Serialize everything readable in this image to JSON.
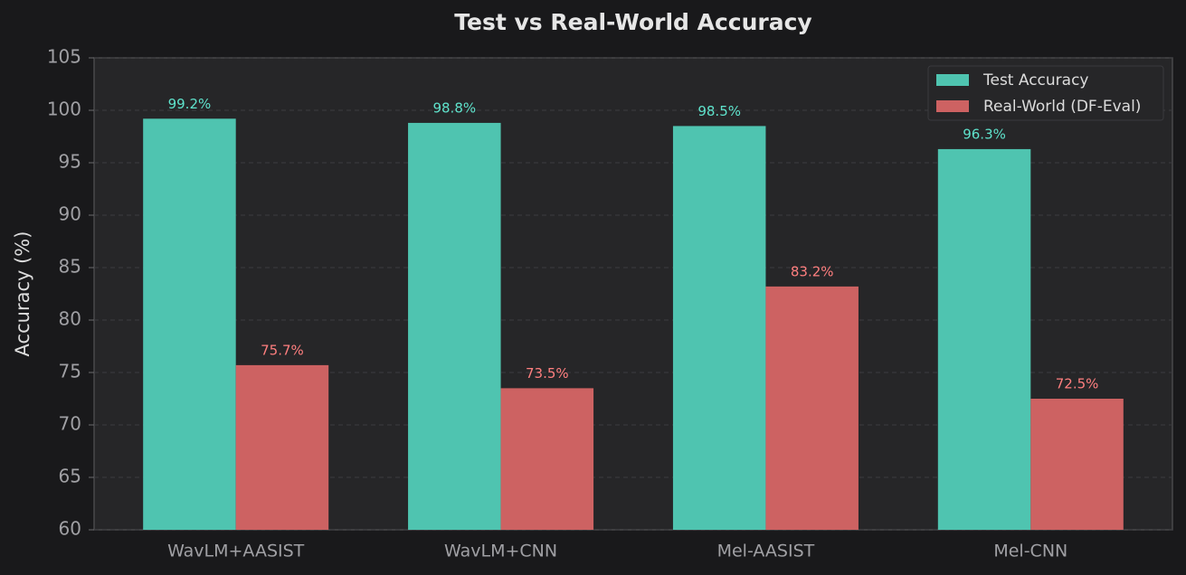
{
  "chart_data": {
    "type": "bar",
    "title": "Test vs Real-World Accuracy",
    "y_label": "Accuracy (%)",
    "categories": [
      "WavLM+AASIST",
      "WavLM+CNN",
      "Mel-AASIST",
      "Mel-CNN"
    ],
    "series": [
      {
        "name": "Test Accuracy",
        "color": "#4fc4b0",
        "values": [
          99.2,
          98.8,
          98.5,
          96.3
        ],
        "value_labels": [
          "99.2%",
          "98.8%",
          "98.5%",
          "96.3%"
        ]
      },
      {
        "name": "Real-World (DF-Eval)",
        "color": "#cd6262",
        "values": [
          75.7,
          73.5,
          83.2,
          72.5
        ],
        "value_labels": [
          "75.7%",
          "73.5%",
          "83.2%",
          "72.5%"
        ]
      }
    ],
    "ylim": [
      60,
      105
    ],
    "yticks": [
      60,
      65,
      70,
      75,
      80,
      85,
      90,
      95,
      100,
      105
    ],
    "grid": true,
    "legend": "upper-right"
  }
}
